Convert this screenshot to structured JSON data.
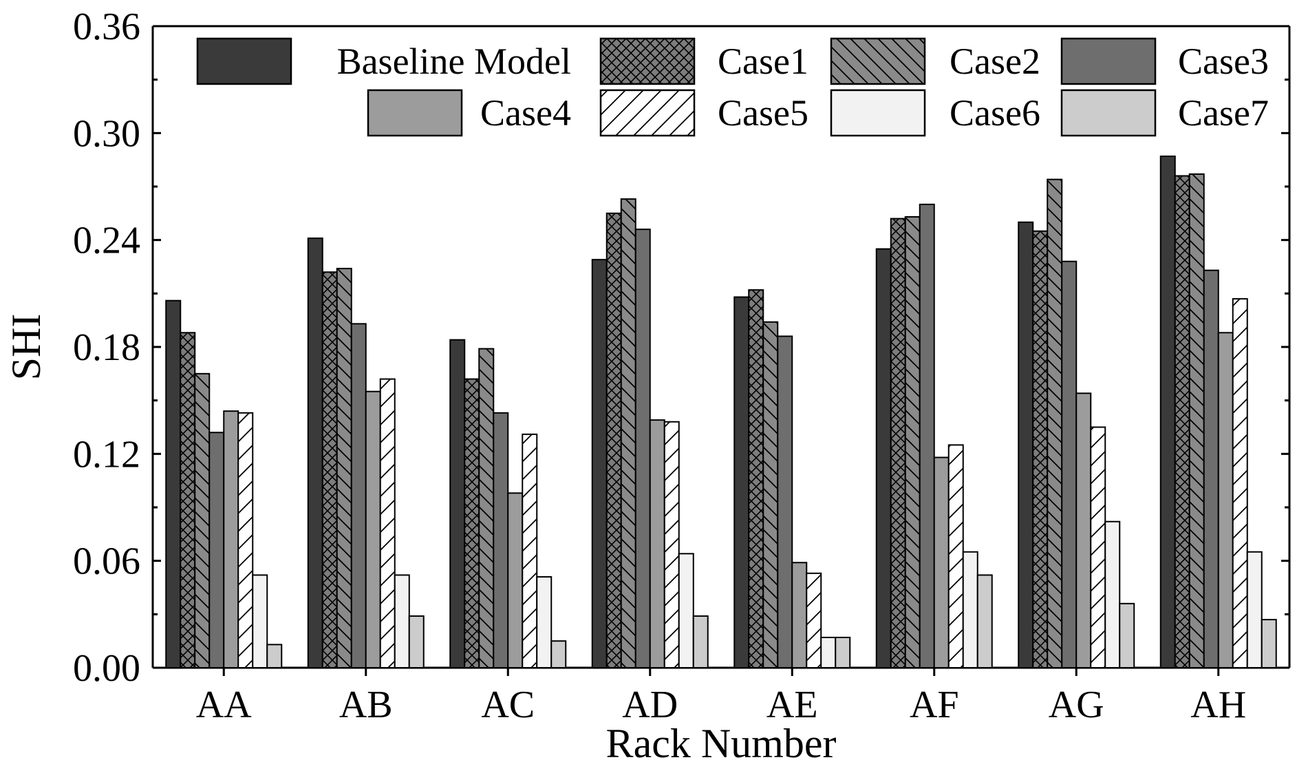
{
  "chart_data": {
    "type": "bar",
    "title": "",
    "xlabel": "Rack Number",
    "ylabel": "SHI",
    "ylim": [
      0,
      0.36
    ],
    "yticks": [
      "0.00",
      "0.06",
      "0.12",
      "0.18",
      "0.24",
      "0.30",
      "0.36"
    ],
    "grid": false,
    "legend_position": "top",
    "categories": [
      "AA",
      "AB",
      "AC",
      "AD",
      "AE",
      "AF",
      "AG",
      "AH"
    ],
    "series": [
      {
        "name": "Baseline Model",
        "pattern": "solid",
        "color": "#3a3a3a",
        "values": [
          0.206,
          0.241,
          0.184,
          0.229,
          0.208,
          0.235,
          0.25,
          0.287
        ]
      },
      {
        "name": "Case1",
        "pattern": "crosshatch",
        "color": "#7d7d7d",
        "values": [
          0.188,
          0.222,
          0.162,
          0.255,
          0.212,
          0.252,
          0.245,
          0.276
        ]
      },
      {
        "name": "Case2",
        "pattern": "backslash",
        "color": "#8a8a8a",
        "values": [
          0.165,
          0.224,
          0.179,
          0.263,
          0.194,
          0.253,
          0.274,
          0.277
        ]
      },
      {
        "name": "Case3",
        "pattern": "solid",
        "color": "#6e6e6e",
        "values": [
          0.132,
          0.193,
          0.143,
          0.246,
          0.186,
          0.26,
          0.228,
          0.223
        ]
      },
      {
        "name": "Case4",
        "pattern": "solid",
        "color": "#9c9c9c",
        "values": [
          0.144,
          0.155,
          0.098,
          0.139,
          0.059,
          0.118,
          0.154,
          0.188
        ]
      },
      {
        "name": "Case5",
        "pattern": "slash",
        "color": "#ffffff",
        "values": [
          0.143,
          0.162,
          0.131,
          0.138,
          0.053,
          0.125,
          0.135,
          0.207
        ]
      },
      {
        "name": "Case6",
        "pattern": "solid",
        "color": "#f2f2f2",
        "values": [
          0.052,
          0.052,
          0.051,
          0.064,
          0.017,
          0.065,
          0.082,
          0.065
        ]
      },
      {
        "name": "Case7",
        "pattern": "solid",
        "color": "#cccccc",
        "values": [
          0.013,
          0.029,
          0.015,
          0.029,
          0.017,
          0.052,
          0.036,
          0.027
        ]
      }
    ]
  }
}
